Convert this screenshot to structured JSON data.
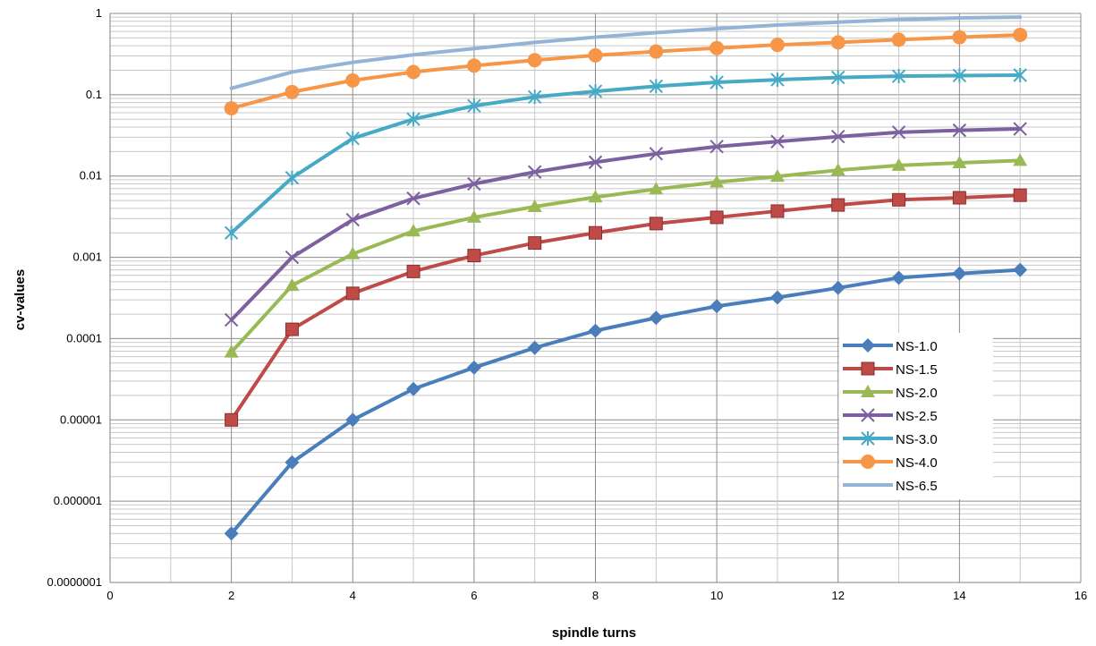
{
  "chart_data": {
    "type": "line",
    "title": "",
    "xlabel": "spindle turns",
    "ylabel": "cv-values",
    "xlim": [
      0,
      16
    ],
    "ylim": [
      1e-07,
      1
    ],
    "y_scale": "log",
    "grid": true,
    "legend_position": "right",
    "x_ticks": [
      "0",
      "2",
      "4",
      "6",
      "8",
      "10",
      "12",
      "14",
      "16"
    ],
    "y_ticks": [
      "1",
      "0.1",
      "0.01",
      "0.001",
      "0.0001",
      "0.00001",
      "0.000001",
      "0.0000001"
    ],
    "x": [
      2,
      3,
      4,
      5,
      6,
      7,
      8,
      9,
      10,
      11,
      12,
      13,
      14,
      15
    ],
    "series": [
      {
        "name": "NS-1.0",
        "color": "#4a7ebb",
        "marker": "diamond",
        "values": [
          4e-07,
          3e-06,
          1e-05,
          2.4e-05,
          4.4e-05,
          7.7e-05,
          0.000125,
          0.00018,
          0.00025,
          0.00032,
          0.00042,
          0.00056,
          0.00063,
          0.0007
        ]
      },
      {
        "name": "NS-1.5",
        "color": "#be4b48",
        "marker": "square",
        "values": [
          1e-05,
          0.00013,
          0.00036,
          0.00067,
          0.00105,
          0.0015,
          0.002,
          0.0026,
          0.0031,
          0.0037,
          0.0044,
          0.0051,
          0.0054,
          0.0058
        ]
      },
      {
        "name": "NS-2.0",
        "color": "#98b954",
        "marker": "triangle",
        "values": [
          6.8e-05,
          0.00045,
          0.0011,
          0.0021,
          0.0031,
          0.0042,
          0.0055,
          0.0069,
          0.0084,
          0.0099,
          0.0118,
          0.0135,
          0.0145,
          0.0155
        ]
      },
      {
        "name": "NS-2.5",
        "color": "#7d60a0",
        "marker": "x",
        "values": [
          0.00017,
          0.001,
          0.0029,
          0.0053,
          0.008,
          0.0112,
          0.0148,
          0.0188,
          0.023,
          0.0265,
          0.0305,
          0.0345,
          0.0365,
          0.038
        ]
      },
      {
        "name": "NS-3.0",
        "color": "#46aac5",
        "marker": "star",
        "values": [
          0.002,
          0.0095,
          0.029,
          0.05,
          0.073,
          0.094,
          0.11,
          0.127,
          0.142,
          0.153,
          0.163,
          0.169,
          0.172,
          0.174
        ]
      },
      {
        "name": "NS-4.0",
        "color": "#f79646",
        "marker": "circle",
        "values": [
          0.068,
          0.108,
          0.15,
          0.19,
          0.228,
          0.266,
          0.305,
          0.34,
          0.375,
          0.41,
          0.44,
          0.475,
          0.51,
          0.545
        ]
      },
      {
        "name": "NS-6.5",
        "color": "#95b3d7",
        "marker": "plus",
        "values": [
          0.12,
          0.19,
          0.25,
          0.31,
          0.37,
          0.44,
          0.51,
          0.58,
          0.65,
          0.72,
          0.78,
          0.84,
          0.88,
          0.9
        ]
      }
    ]
  }
}
